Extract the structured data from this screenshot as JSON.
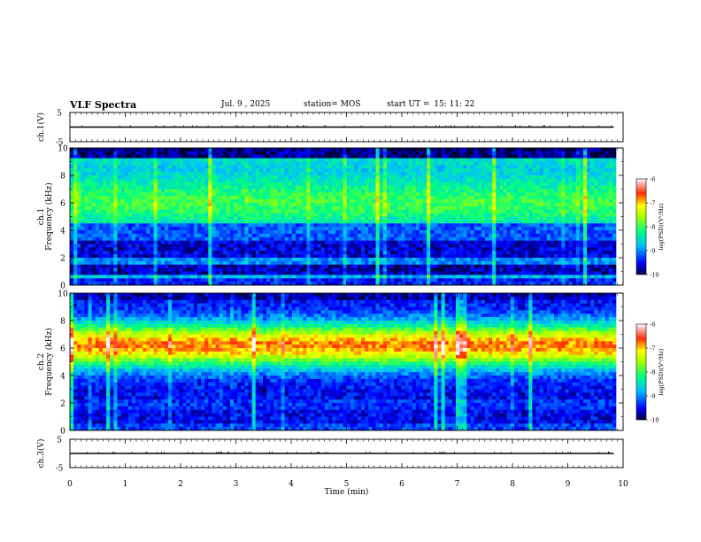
{
  "header": {
    "title": "VLF Spectra",
    "date": "Jul. 9 , 2025",
    "station": "station= MOS",
    "start_label": "start UT =",
    "start_time": "15: 11: 22"
  },
  "chart_data": [
    {
      "type": "line",
      "id": "ch1-voltage",
      "ylabel": "ch.1(V)",
      "ylim": [
        -5,
        5
      ],
      "yticks": [
        "5",
        "-5"
      ],
      "xlim": [
        0,
        10
      ],
      "series": [
        {
          "name": "ch.1",
          "x": [
            0,
            9.83
          ],
          "y": [
            0,
            0
          ]
        }
      ]
    },
    {
      "type": "heatmap",
      "id": "ch1-spectrogram",
      "ylabel_line1": "ch.1",
      "ylabel_line2": "Frequency (kHz)",
      "ylim": [
        0,
        10
      ],
      "yticks": [
        "0",
        "2",
        "4",
        "6",
        "8",
        "10"
      ],
      "xlim": [
        0,
        9.83
      ],
      "profile": "broadband",
      "colorbar": {
        "label": "log(PSD)(V²/Hz)",
        "ticks": [
          "-6",
          "-7",
          "-8",
          "-9",
          "-10"
        ],
        "range": [
          -10,
          -6
        ]
      }
    },
    {
      "type": "heatmap",
      "id": "ch2-spectrogram",
      "ylabel_line1": "ch.2",
      "ylabel_line2": "Frequency (kHz)",
      "ylim": [
        0,
        10
      ],
      "yticks": [
        "0",
        "2",
        "4",
        "6",
        "8",
        "10"
      ],
      "xlim": [
        0,
        9.83
      ],
      "profile": "midband",
      "colorbar": {
        "label": "log(PSD)(V²/Hz)",
        "ticks": [
          "-6",
          "-7",
          "-8",
          "-9",
          "-10"
        ],
        "range": [
          -10,
          -6
        ]
      }
    },
    {
      "type": "line",
      "id": "ch3-voltage",
      "ylabel": "ch.3(V)",
      "ylim": [
        -5,
        5
      ],
      "yticks": [
        "5",
        "-5"
      ],
      "xlim": [
        0,
        10
      ],
      "series": [
        {
          "name": "ch.3",
          "x": [
            0,
            9.83
          ],
          "y": [
            0,
            0
          ]
        }
      ]
    }
  ],
  "xaxis": {
    "label": "Time (min)",
    "ticks": [
      "0",
      "1",
      "2",
      "3",
      "4",
      "5",
      "6",
      "7",
      "8",
      "9",
      "10"
    ]
  }
}
